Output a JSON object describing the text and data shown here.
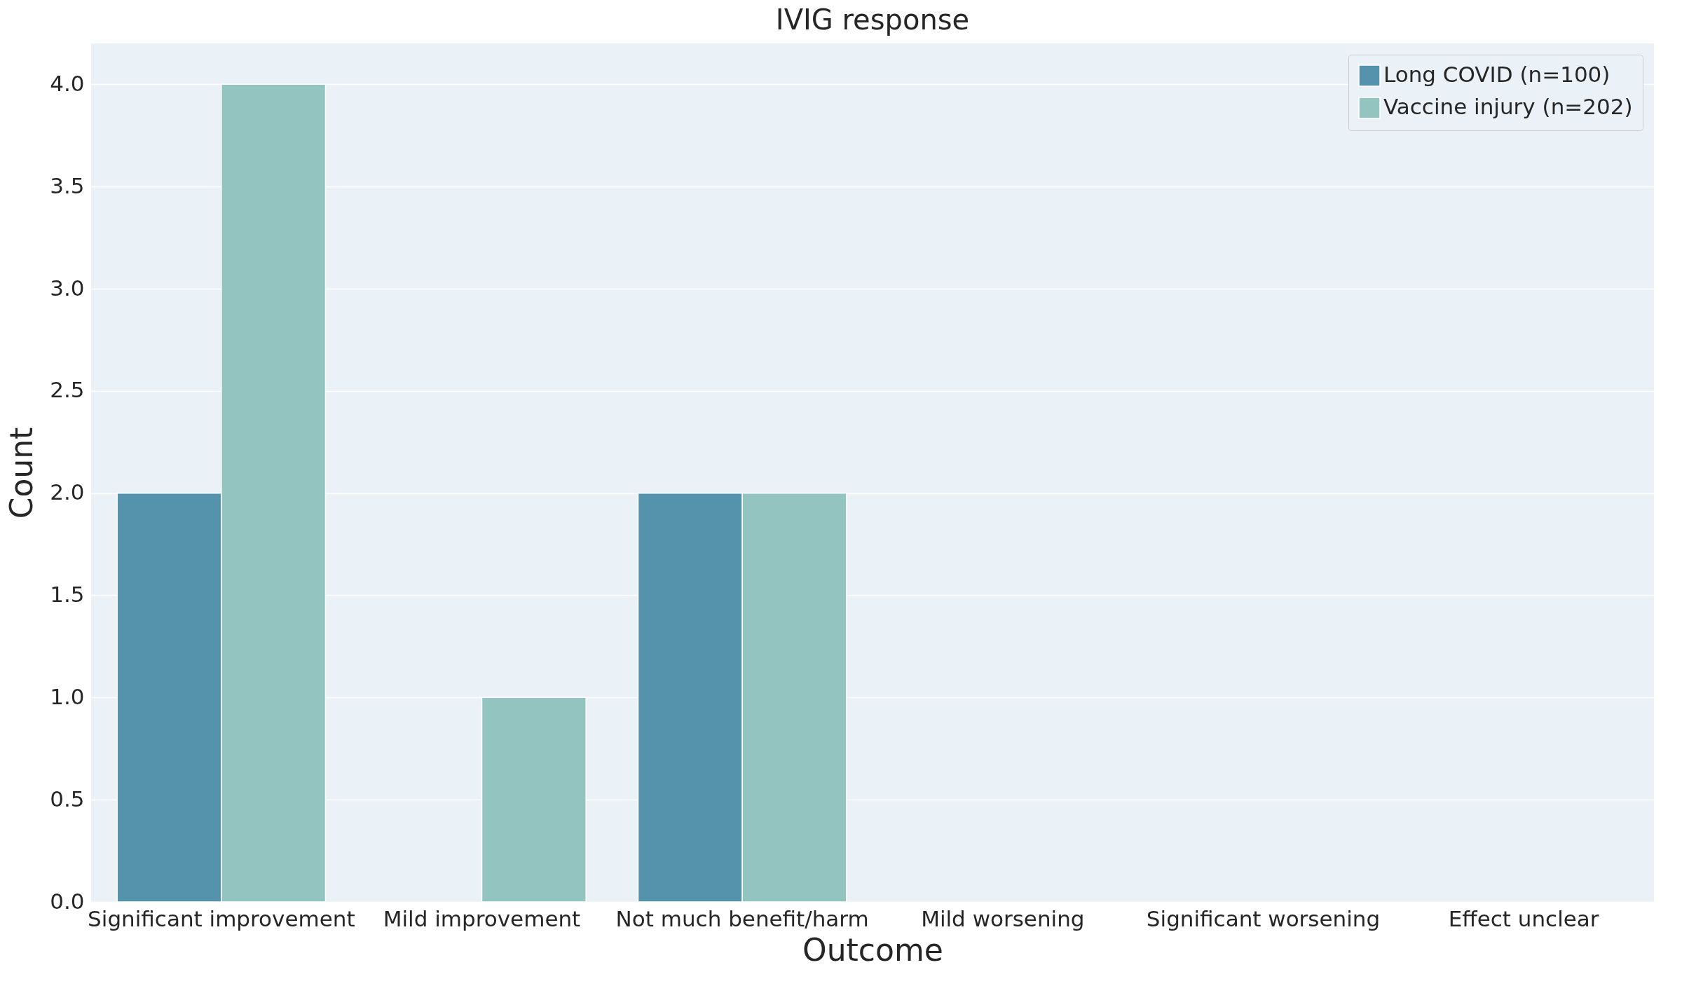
{
  "chart_data": {
    "type": "bar",
    "title": "IVIG response",
    "xlabel": "Outcome",
    "ylabel": "Count",
    "categories": [
      "Significant improvement",
      "Mild improvement",
      "Not much benefit/harm",
      "Mild worsening",
      "Significant worsening",
      "Effect unclear"
    ],
    "series": [
      {
        "name": "Long COVID (n=100)",
        "color": "#5593ad",
        "values": [
          2,
          0,
          2,
          0,
          0,
          0
        ]
      },
      {
        "name": "Vaccine injury (n=202)",
        "color": "#93c4bf",
        "values": [
          4,
          1,
          2,
          0,
          0,
          0
        ]
      }
    ],
    "ylim": [
      0,
      4.2
    ],
    "yticks": [
      {
        "value": 0,
        "label": "0.0"
      },
      0.5,
      {
        "value": 1,
        "label": "1.0"
      },
      1.5,
      {
        "value": 2,
        "label": "2.0"
      },
      2.5,
      {
        "value": 3,
        "label": "3.0"
      },
      3.5,
      {
        "value": 4,
        "label": "4.0"
      }
    ],
    "grid": "y",
    "legend": "top right"
  }
}
